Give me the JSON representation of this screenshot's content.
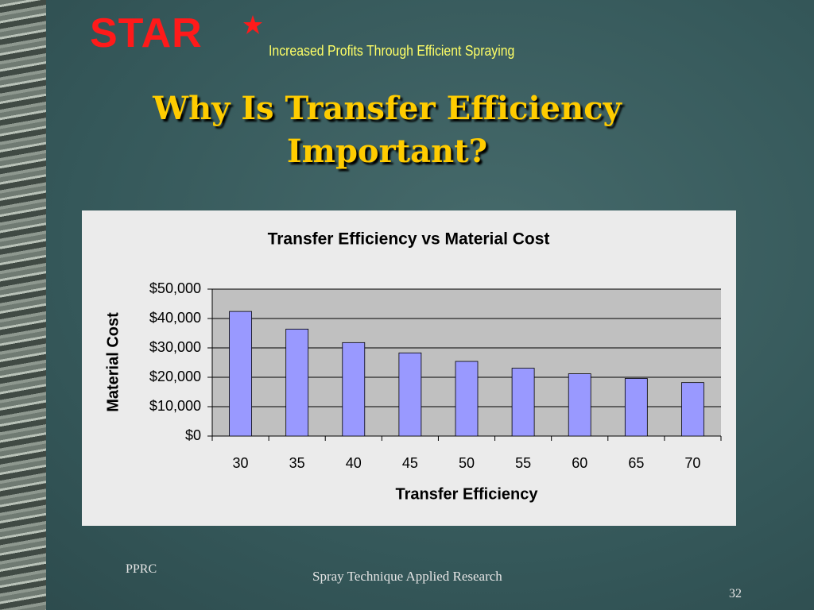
{
  "logo": "STAR",
  "tagline": "Increased Profits Through Efficient Spraying",
  "slide_title": "Why Is Transfer Efficiency Important?",
  "footer_left": "PPRC",
  "footer_center": "Spray Technique Applied Research",
  "page_number": 32,
  "chart_data": {
    "type": "bar",
    "title": "Transfer Efficiency vs Material Cost",
    "x_label": "Transfer Efficiency",
    "y_label": "Material Cost",
    "categories": [
      "30",
      "35",
      "40",
      "45",
      "50",
      "55",
      "60",
      "65",
      "70"
    ],
    "values": [
      42400,
      36400,
      31800,
      28300,
      25400,
      23100,
      21200,
      19600,
      18200
    ],
    "color": "#9999ff",
    "ylim": [
      0,
      50000
    ],
    "yticks": [
      {
        "value": 0,
        "label": "$0"
      },
      {
        "value": 10000,
        "label": "$10,000"
      },
      {
        "value": 20000,
        "label": "$20,000"
      },
      {
        "value": 30000,
        "label": "$30,000"
      },
      {
        "value": 40000,
        "label": "$40,000"
      },
      {
        "value": 50000,
        "label": "$50,000"
      }
    ],
    "grid": true
  }
}
